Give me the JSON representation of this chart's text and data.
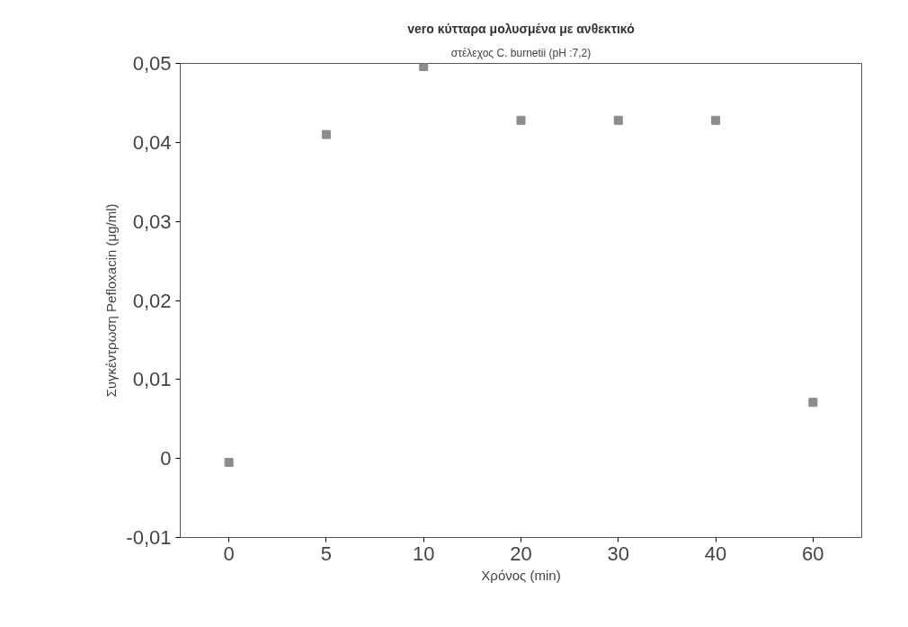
{
  "chart_data": {
    "type": "scatter",
    "title": "vero κύτταρα μολυσμένα με ανθεκτικό",
    "subtitle": "στέλεχος C. burnetii (pH :7,2)",
    "xlabel": "Χρόνος (min)",
    "ylabel": "Συγκέντρωση Pefloxacin (μg/ml)",
    "categories": [
      "0",
      "5",
      "10",
      "20",
      "30",
      "40",
      "60"
    ],
    "series": [
      {
        "color": "#8c8c8c",
        "values": [
          -0.0005,
          0.041,
          0.0496,
          0.0428,
          0.0428,
          0.0428,
          0.0071
        ]
      }
    ],
    "ylim": [
      -0.01,
      0.05
    ],
    "yticks": [
      {
        "value": -0.01,
        "label": "-0,01"
      },
      {
        "value": 0,
        "label": "0"
      },
      {
        "value": 0.01,
        "label": "0,01"
      },
      {
        "value": 0.02,
        "label": "0,02"
      },
      {
        "value": 0.03,
        "label": "0,03"
      },
      {
        "value": 0.04,
        "label": "0,04"
      },
      {
        "value": 0.05,
        "label": "0,05"
      }
    ],
    "grid": false,
    "marker": "square"
  }
}
